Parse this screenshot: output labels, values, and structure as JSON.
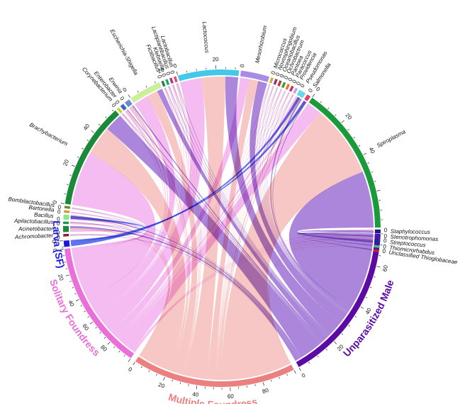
{
  "chart_data": {
    "type": "chord",
    "title": "",
    "colors": {
      "larva": "#1a1adf",
      "solitary": "#ea6fd8",
      "multiple": "#ec8080",
      "male": "#5b0aa3",
      "ribbon_solitary": "#f0a2ea",
      "ribbon_multiple": "#f2b1ad",
      "ribbon_male": "#8a57cc",
      "ribbon_larva": "#2a46e6"
    },
    "groups": [
      {
        "key": "larva",
        "label": "Larva (SF)",
        "total": 5,
        "color": "#1a1adf",
        "ribbon": "#2a46e6"
      },
      {
        "key": "solitary",
        "label": "Solitary Foundress",
        "total": 100,
        "color": "#ea6fd8",
        "ribbon": "#f0a2ea"
      },
      {
        "key": "multiple",
        "label": "Multiple Foundress",
        "total": 100,
        "color": "#ec8080",
        "ribbon": "#f2b1ad"
      },
      {
        "key": "male",
        "label": "Unparasitized Male",
        "total": 75,
        "color": "#5b0aa3",
        "ribbon": "#8a57cc"
      }
    ],
    "genera": [
      {
        "name": "Staphylococcus",
        "color": "#1c1c8a",
        "solitary": 0.3,
        "multiple": 0.3,
        "male": 1.4
      },
      {
        "name": "Stenotrophomonas",
        "color": "#2a2ab0",
        "solitary": 0.3,
        "multiple": 0.2,
        "male": 0.5
      },
      {
        "name": "Streptococcus",
        "color": "#1a2a9a",
        "solitary": 0.4,
        "multiple": 0.3,
        "male": 1.3
      },
      {
        "name": "Thiomicrorhabdus",
        "color": "#3fbf7f",
        "solitary": 0.2,
        "multiple": 0.1,
        "male": 0.3
      },
      {
        "name": "Unclassified Thioglobaceae",
        "color": "#c0282a",
        "solitary": 0.2,
        "multiple": 0.1,
        "male": 0.4
      },
      {
        "name": "Achromobacter",
        "color": "#8b1a3a",
        "solitary": 0.3,
        "multiple": 0.3,
        "male": 0.3
      },
      {
        "name": "Acinetobacter",
        "color": "#1a8a3a",
        "solitary": 1.0,
        "multiple": 1.0,
        "male": 1.2
      },
      {
        "name": "Apilactobacillus",
        "color": "#1a9a4a",
        "solitary": 0.5,
        "multiple": 0.4,
        "male": 0.4
      },
      {
        "name": "Bacillus",
        "color": "#8fe28f",
        "solitary": 1.0,
        "multiple": 0.8,
        "male": 0.8
      },
      {
        "name": "Bartonella",
        "color": "#c8a12a",
        "solitary": 0.3,
        "multiple": 0.2,
        "male": 0.2
      },
      {
        "name": "Bombilactobacillus",
        "color": "#6b8a2a",
        "solitary": 0.3,
        "multiple": 0.3,
        "male": 0.2
      },
      {
        "name": "Brachybacterium",
        "color": "#1a8a3a",
        "solitary": 30,
        "multiple": 16,
        "male": 10
      },
      {
        "name": "Corynebacterium",
        "color": "#c7d12a",
        "solitary": 0.4,
        "multiple": 0.3,
        "male": 0.3
      },
      {
        "name": "Enterobacter",
        "color": "#3a6ac0",
        "solitary": 0.8,
        "multiple": 0.7,
        "male": 0.5
      },
      {
        "name": "Erwinia",
        "color": "#6a8ad0",
        "solitary": 1.0,
        "multiple": 1.0,
        "male": 0.8
      },
      {
        "name": "Escherichia-Shigella",
        "color": "#ccf09a",
        "solitary": 8,
        "multiple": 6,
        "male": 3
      },
      {
        "name": "Fictibacillus",
        "color": "#2a7a4a",
        "solitary": 0.4,
        "multiple": 0.3,
        "male": 0.3
      },
      {
        "name": "Klebsiella",
        "color": "#1aaa5a",
        "solitary": 0.4,
        "multiple": 0.3,
        "male": 0.3
      },
      {
        "name": "Lactiplantibacillus",
        "color": "#a03aa0",
        "solitary": 0.4,
        "multiple": 0.3,
        "male": 0.3
      },
      {
        "name": "Lactobacillus",
        "color": "#ea4a5a",
        "solitary": 0.5,
        "multiple": 0.4,
        "male": 0.3
      },
      {
        "name": "Lactococcus",
        "color": "#41c8ea",
        "solitary": 12,
        "multiple": 13,
        "male": 7
      },
      {
        "name": "Mesorhizobium",
        "color": "#a88ae8",
        "solitary": 5,
        "multiple": 5,
        "male": 5
      },
      {
        "name": "Micrococcus",
        "color": "#d0b02a",
        "solitary": 0.3,
        "multiple": 0.2,
        "male": 0.2
      },
      {
        "name": "Novosphingobium",
        "color": "#9a2a8a",
        "solitary": 0.3,
        "multiple": 0.2,
        "male": 0.2
      },
      {
        "name": "Oceanobacillus",
        "color": "#b03a3a",
        "solitary": 0.3,
        "multiple": 0.2,
        "male": 0.2
      },
      {
        "name": "Ochrobactrum",
        "color": "#3aa03a",
        "solitary": 0.3,
        "multiple": 0.2,
        "male": 0.2
      },
      {
        "name": "Pantoea",
        "color": "#e07a2a",
        "solitary": 0.3,
        "multiple": 0.2,
        "male": 0.2
      },
      {
        "name": "Paracoccus",
        "color": "#d02a6a",
        "solitary": 0.3,
        "multiple": 0.2,
        "male": 0.2
      },
      {
        "name": "Providencia",
        "color": "#c0a0e0",
        "solitary": 0.4,
        "multiple": 0.3,
        "male": 0.2
      },
      {
        "name": "Pseudomonas",
        "color": "#6ad8e8",
        "solitary": 1.5,
        "multiple": 1.2,
        "male": 1.0
      },
      {
        "name": "Salmonella",
        "color": "#ea3a6a",
        "solitary": 0.8,
        "multiple": 0.7,
        "male": 0.5
      },
      {
        "name": "Spiroplasma",
        "color": "#1a9a3a",
        "solitary": 8,
        "multiple": 40,
        "male": 31
      }
    ],
    "genus_label_names": [
      "Staphylococcus",
      "Stenotrophomonas",
      "Streptococcus",
      "Thiomicrorhabdus",
      "Unclassified Thioglobaceae",
      "Achromobacter",
      "Acinetobacter",
      "Apilactobacillus",
      "Bacillus",
      "Bartonella",
      "Bombilactobacillus",
      "Brachybacterium",
      "Corynebacterium",
      "Enterobacter",
      "Erwinia",
      "Escherichia-Shigella",
      "Fictibacillus",
      "Klebsiella",
      "Lactiplantibacillus",
      "Lactobacillus",
      "Lactococcus",
      "Mesorhizobium",
      "Micrococcus",
      "Novosphingobium",
      "Oceanobacillus",
      "Ochrobactrum",
      "Pantoea",
      "Paracoccus",
      "Providencia",
      "Pseudomonas",
      "Salmonella",
      "Spiroplasma"
    ],
    "group_tick_labels": {
      "larva": [
        "0"
      ],
      "solitary": [
        "0",
        "20",
        "40",
        "60",
        "80"
      ],
      "multiple": [
        "0",
        "20",
        "40",
        "60",
        "80"
      ],
      "male": [
        "0",
        "20",
        "40",
        "60"
      ]
    },
    "genus_tick_labels": {
      "Brachybacterium": [
        "0",
        "20",
        "40"
      ],
      "Escherichia-Shigella": [
        "0",
        "20"
      ],
      "Lactococcus": [
        "0",
        "20"
      ],
      "Spiroplasma": [
        "0",
        "20",
        "40"
      ]
    },
    "zero_tick_label": "0",
    "larva_links": [
      {
        "genus": "Pseudomonas",
        "value": 2.5
      },
      {
        "genus": "Salmonella",
        "value": 1.2
      },
      {
        "genus": "Bacillus",
        "value": 1.3
      }
    ]
  }
}
